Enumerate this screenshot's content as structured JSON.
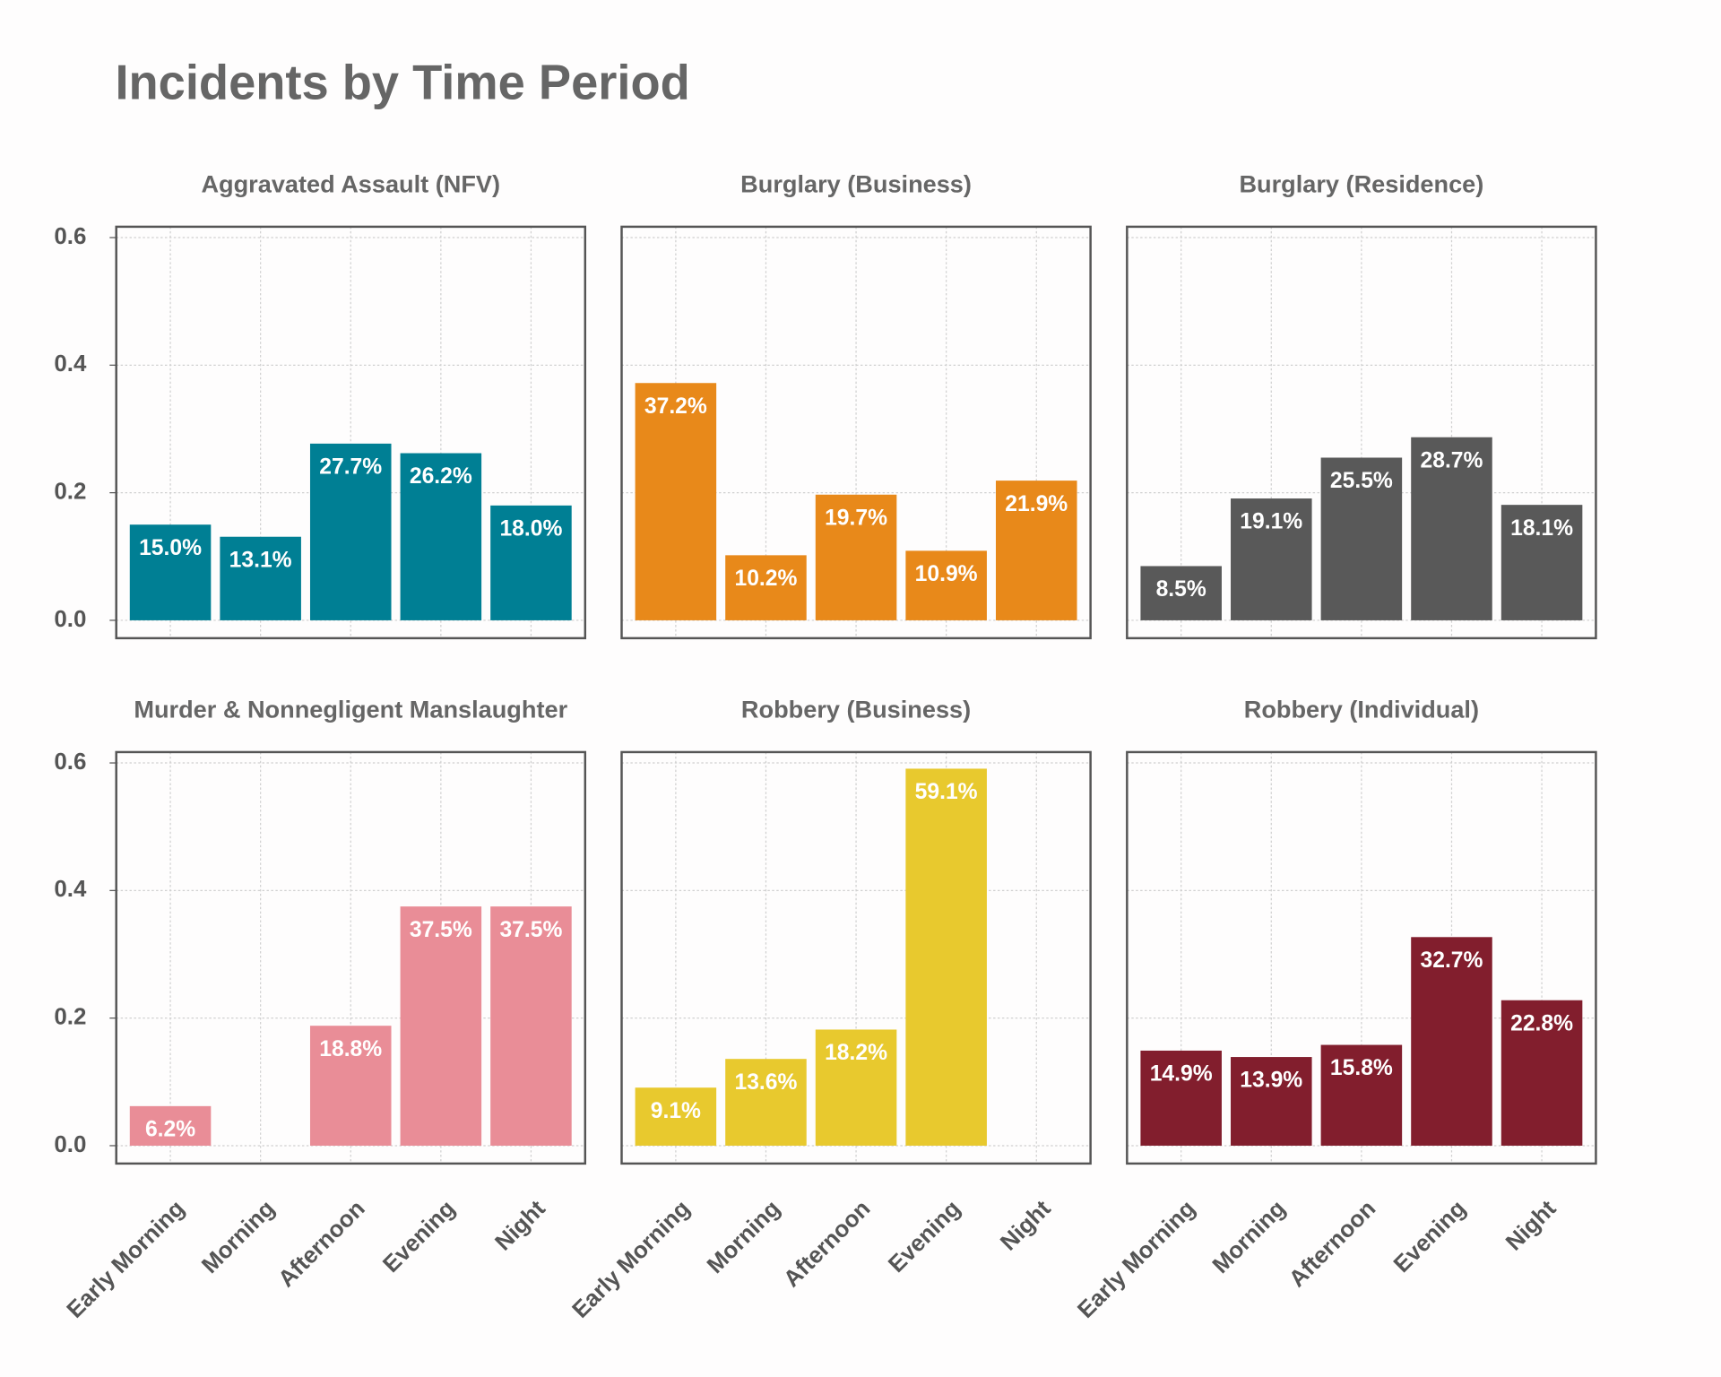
{
  "title": "Incidents by Time Period",
  "chart_data": [
    {
      "type": "bar",
      "title": "Aggravated Assault (NFV)",
      "categories": [
        "Early Morning",
        "Morning",
        "Afternoon",
        "Evening",
        "Night"
      ],
      "values": [
        0.15,
        0.131,
        0.277,
        0.262,
        0.18
      ],
      "value_labels": [
        "15.0%",
        "13.1%",
        "27.7%",
        "26.2%",
        "18.0%"
      ],
      "color": "#007f94",
      "ylim": [
        -0.028,
        0.617
      ],
      "yticks": [
        {
          "value": 0,
          "label": "0.0"
        },
        {
          "value": 0.2,
          "label": "0.2"
        },
        {
          "value": 0.4,
          "label": "0.4"
        },
        {
          "value": 0.6,
          "label": "0.6"
        }
      ],
      "grid": true
    },
    {
      "type": "bar",
      "title": "Burglary (Business)",
      "categories": [
        "Early Morning",
        "Morning",
        "Afternoon",
        "Evening",
        "Night"
      ],
      "values": [
        0.372,
        0.102,
        0.197,
        0.109,
        0.219
      ],
      "value_labels": [
        "37.2%",
        "10.2%",
        "19.7%",
        "10.9%",
        "21.9%"
      ],
      "color": "#e8891a",
      "ylim": [
        -0.028,
        0.617
      ],
      "yticks": [
        {
          "value": 0,
          "label": "0.0"
        },
        {
          "value": 0.2,
          "label": "0.2"
        },
        {
          "value": 0.4,
          "label": "0.4"
        },
        {
          "value": 0.6,
          "label": "0.6"
        }
      ],
      "grid": true
    },
    {
      "type": "bar",
      "title": "Burglary (Residence)",
      "categories": [
        "Early Morning",
        "Morning",
        "Afternoon",
        "Evening",
        "Night"
      ],
      "values": [
        0.085,
        0.191,
        0.255,
        0.287,
        0.181
      ],
      "value_labels": [
        "8.5%",
        "19.1%",
        "25.5%",
        "28.7%",
        "18.1%"
      ],
      "color": "#595959",
      "ylim": [
        -0.028,
        0.617
      ],
      "yticks": [
        {
          "value": 0,
          "label": "0.0"
        },
        {
          "value": 0.2,
          "label": "0.2"
        },
        {
          "value": 0.4,
          "label": "0.4"
        },
        {
          "value": 0.6,
          "label": "0.6"
        }
      ],
      "grid": true
    },
    {
      "type": "bar",
      "title": "Murder & Nonnegligent Manslaughter",
      "categories": [
        "Early Morning",
        "Morning",
        "Afternoon",
        "Evening",
        "Night"
      ],
      "values": [
        0.062,
        null,
        0.188,
        0.375,
        0.375
      ],
      "value_labels": [
        "6.2%",
        null,
        "18.8%",
        "37.5%",
        "37.5%"
      ],
      "color": "#e98d97",
      "ylim": [
        -0.028,
        0.617
      ],
      "yticks": [
        {
          "value": 0,
          "label": "0.0"
        },
        {
          "value": 0.2,
          "label": "0.2"
        },
        {
          "value": 0.4,
          "label": "0.4"
        },
        {
          "value": 0.6,
          "label": "0.6"
        }
      ],
      "grid": true
    },
    {
      "type": "bar",
      "title": "Robbery (Business)",
      "categories": [
        "Early Morning",
        "Morning",
        "Afternoon",
        "Evening",
        "Night"
      ],
      "values": [
        0.091,
        0.136,
        0.182,
        0.591,
        null
      ],
      "value_labels": [
        "9.1%",
        "13.6%",
        "18.2%",
        "59.1%",
        null
      ],
      "color": "#e8c92e",
      "ylim": [
        -0.028,
        0.617
      ],
      "yticks": [
        {
          "value": 0,
          "label": "0.0"
        },
        {
          "value": 0.2,
          "label": "0.2"
        },
        {
          "value": 0.4,
          "label": "0.4"
        },
        {
          "value": 0.6,
          "label": "0.6"
        }
      ],
      "grid": true
    },
    {
      "type": "bar",
      "title": "Robbery (Individual)",
      "categories": [
        "Early Morning",
        "Morning",
        "Afternoon",
        "Evening",
        "Night"
      ],
      "values": [
        0.149,
        0.139,
        0.158,
        0.327,
        0.228
      ],
      "value_labels": [
        "14.9%",
        "13.9%",
        "15.8%",
        "32.7%",
        "22.8%"
      ],
      "color": "#821e2d",
      "ylim": [
        -0.028,
        0.617
      ],
      "yticks": [
        {
          "value": 0,
          "label": "0.0"
        },
        {
          "value": 0.2,
          "label": "0.2"
        },
        {
          "value": 0.4,
          "label": "0.4"
        },
        {
          "value": 0.6,
          "label": "0.6"
        }
      ],
      "grid": true
    }
  ]
}
